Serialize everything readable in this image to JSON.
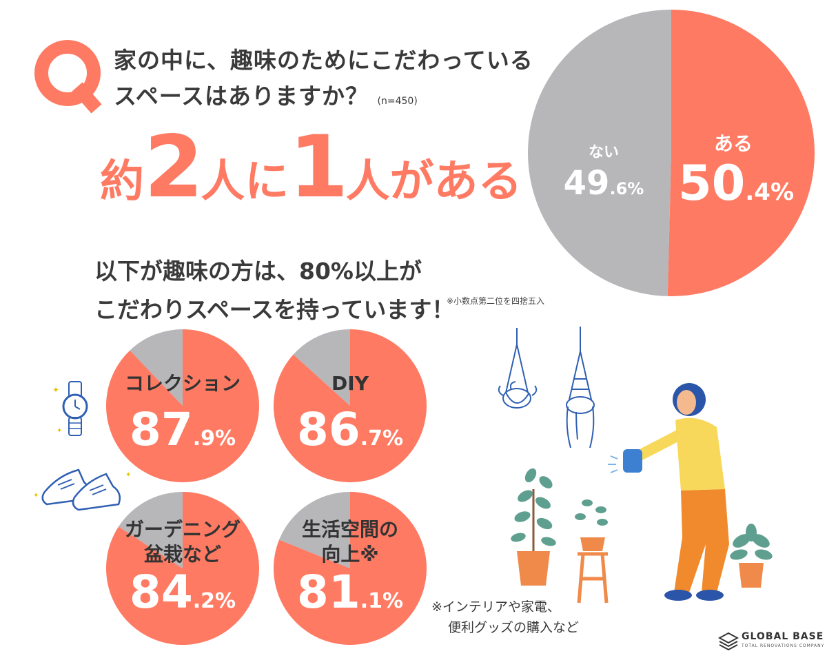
{
  "question": {
    "line1": "家の中に、趣味のためにこだわっている",
    "line2": "スペースはありますか？",
    "n": "(n=450)"
  },
  "headline": {
    "p1": "約",
    "p2": "2",
    "p3": "人に",
    "p4": "1",
    "p5": "人がある"
  },
  "subhead": {
    "line1": "以下が趣味の方は、80%以上が",
    "line2": "こだわりスペースを持っています！"
  },
  "footnote_rounding": "※小数点第二位を四捨五入",
  "footnote_items": {
    "line1": "※インテリアや家電、",
    "line2": "便利グッズの購入など"
  },
  "logo": {
    "name": "GLOBAL BASE",
    "tagline": "TOTAL RENOVATIONS COMPANY"
  },
  "colors": {
    "accent": "#ff7a63",
    "gray": "#b7b6b9"
  },
  "chart_data": [
    {
      "type": "pie",
      "slices": [
        {
          "label": "ある",
          "int": "50",
          "dec": ".4%",
          "value": 50.4
        },
        {
          "label": "ない",
          "int": "49",
          "dec": ".6%",
          "value": 49.6
        }
      ]
    },
    {
      "type": "pie",
      "label_lines": [
        "コレクション"
      ],
      "int": "87",
      "dec": ".9%",
      "value": 87.9
    },
    {
      "type": "pie",
      "label_lines": [
        "DIY"
      ],
      "int": "86",
      "dec": ".7%",
      "value": 86.7
    },
    {
      "type": "pie",
      "label_lines": [
        "ガーデニング",
        "盆栽など"
      ],
      "int": "84",
      "dec": ".2%",
      "value": 84.2
    },
    {
      "type": "pie",
      "label_lines": [
        "生活空間の",
        "向上※"
      ],
      "int": "81",
      "dec": ".1%",
      "value": 81.1
    }
  ]
}
